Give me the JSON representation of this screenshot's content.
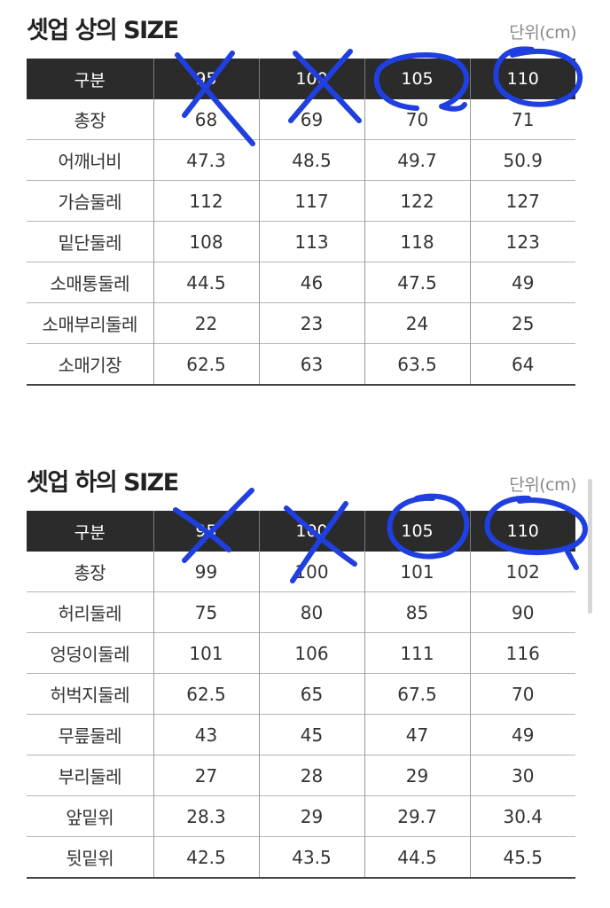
{
  "top": {
    "title": "셋업 상의 SIZE",
    "unit": "단위(cm)",
    "header": [
      "구분",
      "95",
      "100",
      "105",
      "110"
    ],
    "rows": [
      [
        "총장",
        "68",
        "69",
        "70",
        "71"
      ],
      [
        "어깨너비",
        "47.3",
        "48.5",
        "49.7",
        "50.9"
      ],
      [
        "가슴둘레",
        "112",
        "117",
        "122",
        "127"
      ],
      [
        "밑단둘레",
        "108",
        "113",
        "118",
        "123"
      ],
      [
        "소매통둘레",
        "44.5",
        "46",
        "47.5",
        "49"
      ],
      [
        "소매부리둘레",
        "22",
        "23",
        "24",
        "25"
      ],
      [
        "소매기장",
        "62.5",
        "63",
        "63.5",
        "64"
      ]
    ]
  },
  "bottom": {
    "title": "셋업 하의 SIZE",
    "unit": "단위(cm)",
    "header": [
      "구분",
      "95",
      "100",
      "105",
      "110"
    ],
    "rows": [
      [
        "총장",
        "99",
        "100",
        "101",
        "102"
      ],
      [
        "허리둘레",
        "75",
        "80",
        "85",
        "90"
      ],
      [
        "엉덩이둘레",
        "101",
        "106",
        "111",
        "116"
      ],
      [
        "허벅지둘레",
        "62.5",
        "65",
        "67.5",
        "70"
      ],
      [
        "무릎둘레",
        "43",
        "45",
        "47",
        "49"
      ],
      [
        "부리둘레",
        "27",
        "28",
        "29",
        "30"
      ],
      [
        "앞밑위",
        "28.3",
        "29",
        "29.7",
        "30.4"
      ],
      [
        "뒷밑위",
        "42.5",
        "43.5",
        "44.5",
        "45.5"
      ]
    ]
  },
  "annotations": {
    "ink_color": "#1f3fe0",
    "crossed_out": [
      "95",
      "100"
    ],
    "circled": [
      "105",
      "110"
    ]
  }
}
